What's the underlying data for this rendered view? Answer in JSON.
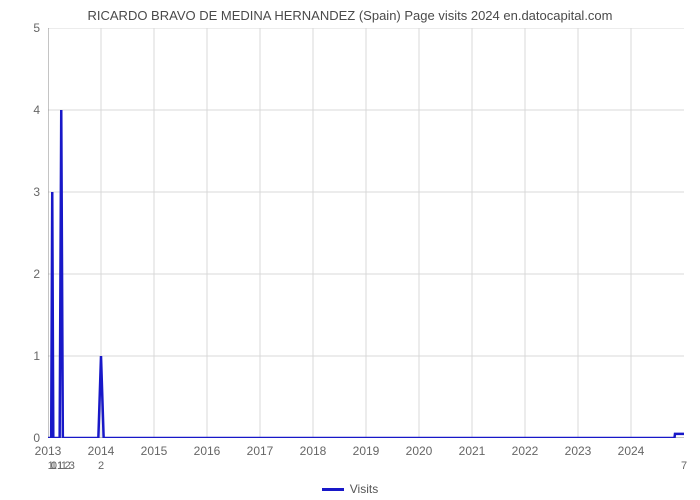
{
  "chart": {
    "type": "line",
    "title": "RICARDO BRAVO DE MEDINA HERNANDEZ (Spain) Page visits 2024 en.datocapital.com",
    "title_fontsize": 13,
    "title_color": "#4a4a4a",
    "background_color": "#ffffff",
    "grid_color": "#d9d9d9",
    "axis_color": "#888888",
    "line_color": "#1818c8",
    "line_width": 2.5,
    "xdomain": [
      2013,
      2025
    ],
    "ydomain": [
      0,
      5
    ],
    "yticks": [
      0,
      1,
      2,
      3,
      4,
      5
    ],
    "xticks": [
      2013,
      2014,
      2015,
      2016,
      2017,
      2018,
      2019,
      2020,
      2021,
      2022,
      2023,
      2024
    ],
    "points": [
      {
        "x": 2013.0,
        "y": 0
      },
      {
        "x": 2013.06,
        "y": 0
      },
      {
        "x": 2013.08,
        "y": 3
      },
      {
        "x": 2013.1,
        "y": 0
      },
      {
        "x": 2013.22,
        "y": 0
      },
      {
        "x": 2013.25,
        "y": 4
      },
      {
        "x": 2013.28,
        "y": 0
      },
      {
        "x": 2013.95,
        "y": 0
      },
      {
        "x": 2014.0,
        "y": 1
      },
      {
        "x": 2014.05,
        "y": 0
      },
      {
        "x": 2024.82,
        "y": 0
      },
      {
        "x": 2024.83,
        "y": 0.05
      },
      {
        "x": 2025.0,
        "y": 0.05
      }
    ],
    "bottom_row_labels": [
      {
        "x": 2013.05,
        "label": "1"
      },
      {
        "x": 2013.11,
        "label": "1"
      },
      {
        "x": 2013.17,
        "label": "01"
      },
      {
        "x": 2013.23,
        "label": "1"
      },
      {
        "x": 2013.3,
        "label": "1"
      },
      {
        "x": 2013.37,
        "label": "2"
      },
      {
        "x": 2013.45,
        "label": "3"
      },
      {
        "x": 2014.0,
        "label": "2"
      },
      {
        "x": 2025.0,
        "label": "7"
      }
    ],
    "legend_label": "Visits",
    "legend_fontsize": 12,
    "tick_fontsize": 12
  }
}
